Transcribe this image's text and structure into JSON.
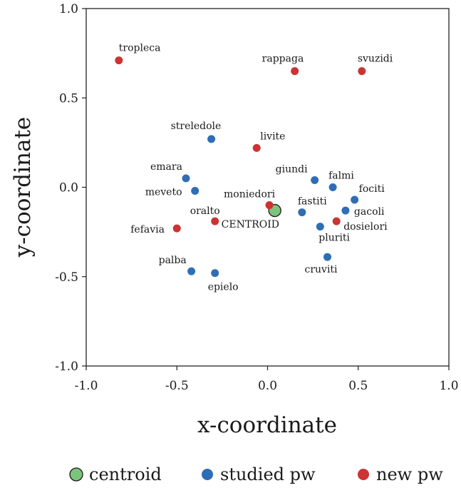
{
  "chart_data": {
    "type": "scatter",
    "title": "",
    "xlabel": "x-coordinate",
    "ylabel": "y-coordinate",
    "xlim": [
      -1.0,
      1.0
    ],
    "ylim": [
      -1.0,
      1.0
    ],
    "xticks": [
      -1.0,
      -0.5,
      0.0,
      0.5,
      1.0
    ],
    "yticks": [
      -1.0,
      -0.5,
      0.0,
      0.5,
      1.0
    ],
    "xtick_labels": [
      "-1.0",
      "-0.5",
      "0.0",
      "0.5",
      "1.0"
    ],
    "ytick_labels": [
      "-1.0",
      "-0.5",
      "0.0",
      "0.5",
      "1.0"
    ],
    "grid": false,
    "legend_position": "bottom",
    "series": [
      {
        "name": "centroid",
        "color": "#7cc47c",
        "points": [
          {
            "label": "CENTROID",
            "x": 0.04,
            "y": -0.13
          }
        ]
      },
      {
        "name": "studied pw",
        "color": "#2f6db5",
        "points": [
          {
            "label": "streledole",
            "x": -0.31,
            "y": 0.27
          },
          {
            "label": "emara",
            "x": -0.45,
            "y": 0.05
          },
          {
            "label": "meveto",
            "x": -0.4,
            "y": -0.02
          },
          {
            "label": "giundi",
            "x": 0.26,
            "y": 0.04
          },
          {
            "label": "falmi",
            "x": 0.36,
            "y": 0.0
          },
          {
            "label": "fociti",
            "x": 0.48,
            "y": -0.07
          },
          {
            "label": "fastiti",
            "x": 0.19,
            "y": -0.14
          },
          {
            "label": "gacoli",
            "x": 0.43,
            "y": -0.13
          },
          {
            "label": "pluriti",
            "x": 0.29,
            "y": -0.22
          },
          {
            "label": "cruviti",
            "x": 0.33,
            "y": -0.39
          },
          {
            "label": "palba",
            "x": -0.42,
            "y": -0.47
          },
          {
            "label": "epielo",
            "x": -0.29,
            "y": -0.48
          }
        ]
      },
      {
        "name": "new pw",
        "color": "#cc3333",
        "points": [
          {
            "label": "tropleca",
            "x": -0.82,
            "y": 0.71
          },
          {
            "label": "rappaga",
            "x": 0.15,
            "y": 0.65
          },
          {
            "label": "svuzidi",
            "x": 0.52,
            "y": 0.65
          },
          {
            "label": "livite",
            "x": -0.06,
            "y": 0.22
          },
          {
            "label": "moniedori",
            "x": 0.01,
            "y": -0.1
          },
          {
            "label": "oralto",
            "x": -0.29,
            "y": -0.19
          },
          {
            "label": "fefavia",
            "x": -0.5,
            "y": -0.23
          },
          {
            "label": "dosielori",
            "x": 0.38,
            "y": -0.19
          }
        ]
      }
    ]
  }
}
